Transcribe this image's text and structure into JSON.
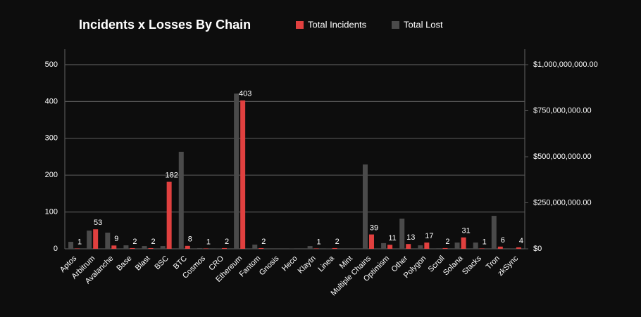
{
  "chart_data": {
    "type": "bar",
    "title": "Incidents x Losses By Chain",
    "categories": [
      "Aptos",
      "Arbitrum",
      "Avalanche",
      "Base",
      "Blast",
      "BSC",
      "BTC",
      "Cosmos",
      "CRO",
      "Ethereum",
      "Fantom",
      "Gnosis",
      "Heco",
      "Klaytn",
      "Linea",
      "Mint",
      "Multiple Chains",
      "Optimism",
      "Other",
      "Polygon",
      "Scroll",
      "Solana",
      "Stacks",
      "Tron",
      "zkSync"
    ],
    "series": [
      {
        "name": "Total Incidents",
        "color": "#e0403f",
        "axis": "y",
        "values": [
          1,
          53,
          9,
          2,
          2,
          182,
          8,
          1,
          2,
          403,
          2,
          null,
          null,
          1,
          2,
          null,
          39,
          11,
          13,
          17,
          2,
          31,
          1,
          6,
          4
        ]
      },
      {
        "name": "Total Lost",
        "color": "#4a4a4a",
        "axis": "y2",
        "values": [
          38000000,
          99000000,
          88000000,
          19000000,
          15000000,
          15000000,
          527000000,
          4000000,
          1000000,
          843000000,
          23000000,
          0,
          2000000,
          15000000,
          1000000,
          0,
          458000000,
          31000000,
          164000000,
          19000000,
          3000000,
          34000000,
          34000000,
          179000000,
          1000000
        ]
      }
    ],
    "ylim": [
      0,
      542
    ],
    "yticks": [
      0,
      100,
      200,
      300,
      400,
      500
    ],
    "y2lim": [
      0,
      1084000000
    ],
    "y2ticks": [
      {
        "value": 0,
        "label": "$0"
      },
      {
        "value": 250000000,
        "label": "$250,000,000.00"
      },
      {
        "value": 500000000,
        "label": "$500,000,000.00"
      },
      {
        "value": 750000000,
        "label": "$750,000,000.00"
      },
      {
        "value": 1000000000,
        "label": "$1,000,000,000.00"
      }
    ],
    "grid": true,
    "legend": "top"
  }
}
